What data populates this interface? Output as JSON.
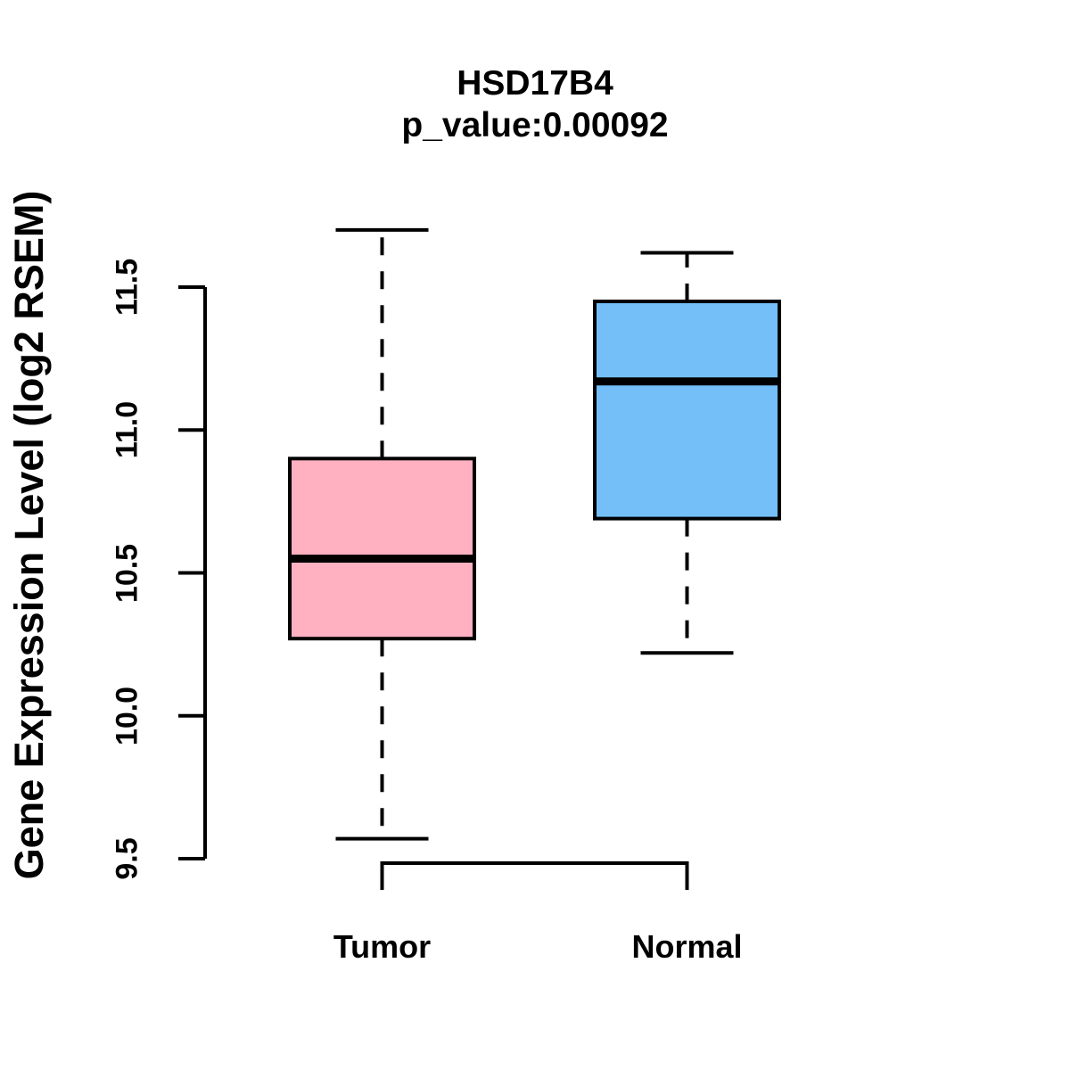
{
  "title": "HSD17B4",
  "subtitle": "p_value:0.00092",
  "y_axis_title": "Gene Expression Level (log2 RSEM)",
  "colors": {
    "tumor_fill": "#FFB1C1",
    "normal_fill": "#74BFF7",
    "stroke": "#000000",
    "background": "#FFFFFF"
  },
  "chart_data": {
    "type": "boxplot",
    "title": "HSD17B4",
    "subtitle": "p_value:0.00092",
    "ylabel": "Gene Expression Level (log2 RSEM)",
    "xlabel": "",
    "categories": [
      "Tumor",
      "Normal"
    ],
    "yticks": [
      9.5,
      10.0,
      10.5,
      11.0,
      11.5
    ],
    "ytick_labels": [
      "9.5",
      "10.0",
      "10.5",
      "11.0",
      "11.5"
    ],
    "ylim": [
      9.4,
      11.8
    ],
    "grid": false,
    "legend": false,
    "series": [
      {
        "name": "Tumor",
        "whisker_low": 9.57,
        "q1": 10.27,
        "median": 10.55,
        "q3": 10.9,
        "whisker_high": 11.7,
        "fill": "#FFB1C1"
      },
      {
        "name": "Normal",
        "whisker_low": 10.22,
        "q1": 10.69,
        "median": 11.17,
        "q3": 11.45,
        "whisker_high": 11.62,
        "fill": "#74BFF7"
      }
    ]
  }
}
